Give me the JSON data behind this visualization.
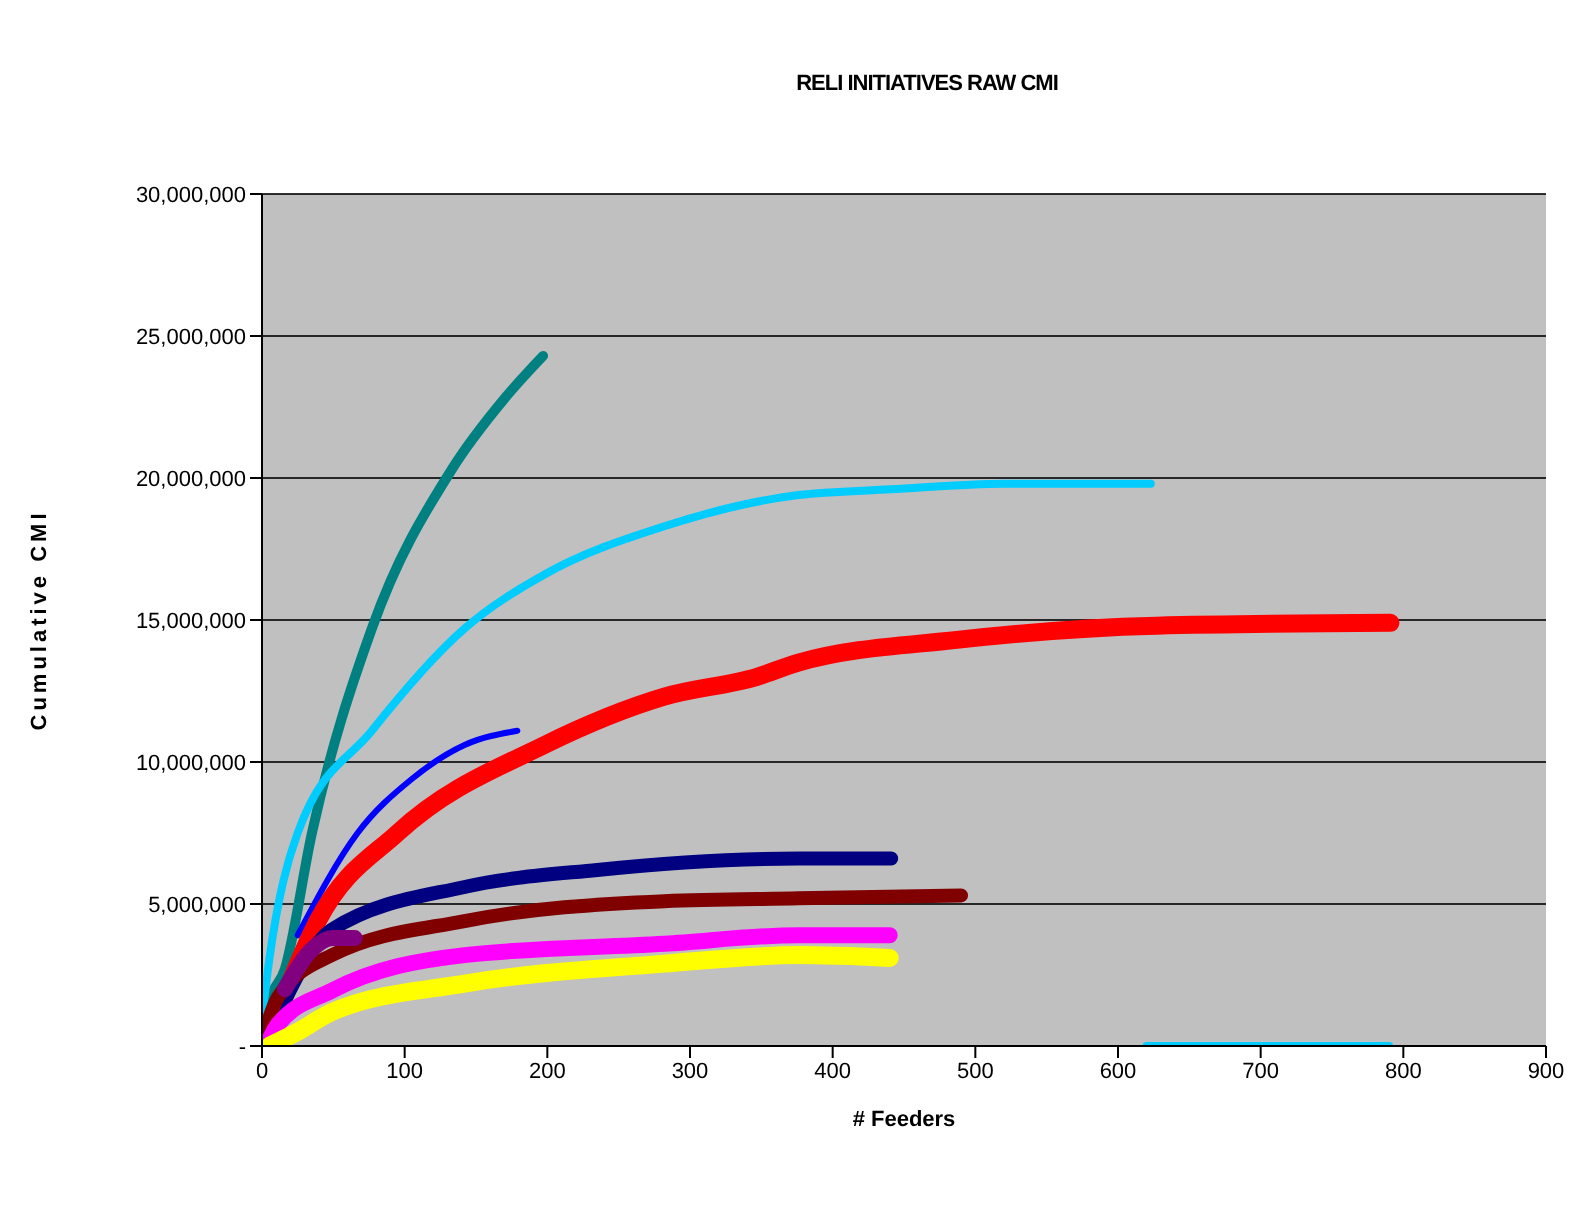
{
  "chart_data": {
    "type": "line",
    "title": "RELI INITIATIVES RAW CMI",
    "xlabel": "# Feeders",
    "ylabel": "Cumulative CMI",
    "xlim": [
      0,
      900
    ],
    "xticks": [
      0,
      100,
      200,
      300,
      400,
      500,
      600,
      700,
      800,
      900
    ],
    "ylim": [
      0,
      30000000
    ],
    "yticks": [
      {
        "value": 0,
        "label": "-"
      },
      {
        "value": 5000000,
        "label": "5,000,000"
      },
      {
        "value": 10000000,
        "label": "10,000,000"
      },
      {
        "value": 15000000,
        "label": "15,000,000"
      },
      {
        "value": 20000000,
        "label": "20,000,000"
      },
      {
        "value": 25000000,
        "label": "25,000,000"
      },
      {
        "value": 30000000,
        "label": "30,000,000"
      }
    ],
    "grid": "y",
    "marker": "none",
    "line_style": "solid",
    "series": [
      {
        "color": "#008080",
        "x": [
          0,
          5,
          16,
          35,
          77,
          133,
          170,
          197
        ],
        "values": [
          0,
          1500000,
          2700000,
          7500000,
          14700000,
          20300000,
          22800000,
          24300000
        ]
      },
      {
        "color": "#00ccff",
        "x": [
          0,
          5,
          25,
          77,
          142,
          198,
          282,
          376,
          441,
          520,
          623
        ],
        "values": [
          1000000,
          3000000,
          7500000,
          11100000,
          14700000,
          16600000,
          18300000,
          19400000,
          19600000,
          19800000,
          19800000
        ]
      },
      {
        "color": "#0000ff",
        "x": [
          25,
          67,
          105,
          142,
          179
        ],
        "values": [
          3900000,
          7500000,
          9400000,
          10600000,
          11100000
        ]
      },
      {
        "color": "#ff0000",
        "x": [
          10,
          39,
          95,
          198,
          282,
          347,
          376,
          487,
          627,
          791
        ],
        "values": [
          1000000,
          4400000,
          7500000,
          10600000,
          12300000,
          13000000,
          13500000,
          14300000,
          14800000,
          14900000
        ]
      },
      {
        "color": "#000080",
        "x": [
          10,
          49,
          142,
          235,
          376,
          441
        ],
        "values": [
          1000000,
          4100000,
          5600000,
          6200000,
          6600000,
          6600000
        ]
      },
      {
        "color": "#800000",
        "x": [
          2,
          11,
          49,
          142,
          282,
          376,
          490
        ],
        "values": [
          500000,
          1700000,
          3200000,
          4400000,
          5100000,
          5200000,
          5300000
        ]
      },
      {
        "color": "#ff00ff",
        "x": [
          5,
          11,
          49,
          142,
          282,
          376,
          440
        ],
        "values": [
          200000,
          750000,
          1950000,
          3200000,
          3600000,
          3900000,
          3900000
        ]
      },
      {
        "color": "#ffff00",
        "x": [
          5,
          25,
          49,
          142,
          282,
          376,
          440
        ],
        "values": [
          0,
          500000,
          1200000,
          2200000,
          2900000,
          3200000,
          3100000
        ]
      },
      {
        "color": "#800080",
        "x": [
          16,
          35,
          50,
          65
        ],
        "values": [
          2000000,
          3400000,
          3800000,
          3800000
        ]
      },
      {
        "color": "#00ccff",
        "x": [
          620,
          790
        ],
        "values": [
          0,
          0
        ]
      }
    ]
  }
}
